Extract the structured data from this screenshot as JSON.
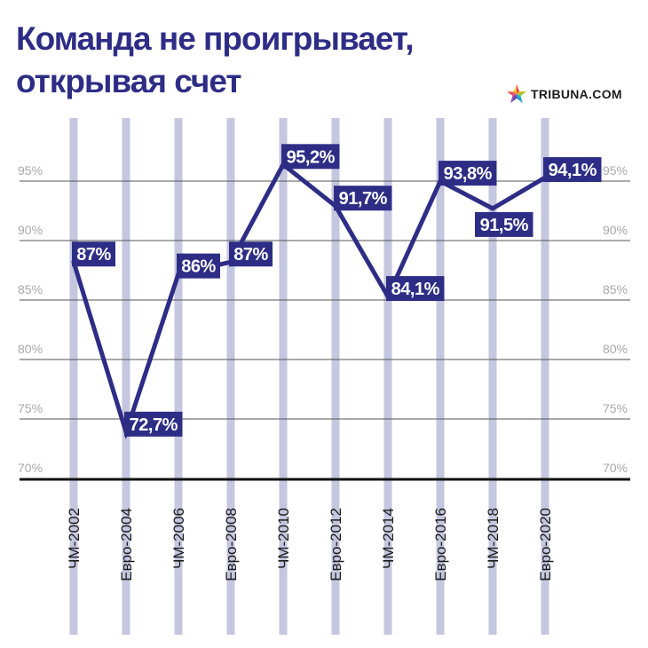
{
  "title_lines": [
    "Команда не проигрывает,",
    "открывая счет"
  ],
  "brand": {
    "name": "TRIBUNA.COM",
    "icon": "star-logo-icon"
  },
  "colors": {
    "line": "#2e2d86",
    "label_bg": "#2e2d86",
    "column_stripe": "#c5c6df",
    "grid": "#555555",
    "baseline": "#111111",
    "tick_text": "#a8a8a8"
  },
  "chart_data": {
    "type": "line",
    "title": "Команда не проигрывает, открывая счет",
    "categories": [
      "ЧМ-2002",
      "Евро-2004",
      "ЧМ-2006",
      "Евро-2008",
      "ЧМ-2010",
      "Евро-2012",
      "ЧМ-2014",
      "Евро-2016",
      "ЧМ-2018",
      "Евро-2020"
    ],
    "values": [
      87,
      72.7,
      86,
      87,
      95.2,
      91.7,
      84.1,
      93.8,
      91.5,
      94.1
    ],
    "data_labels": [
      "87%",
      "72,7%",
      "86%",
      "87%",
      "95,2%",
      "91,7%",
      "84,1%",
      "93,8%",
      "91,5%",
      "94,1%"
    ],
    "label_position": [
      "right",
      "right",
      "right",
      "right",
      "right",
      "right",
      "right",
      "right",
      "below",
      "right"
    ],
    "yticks": [
      70,
      75,
      80,
      85,
      90,
      95
    ],
    "ytick_labels": [
      "70%",
      "75%",
      "80%",
      "85%",
      "90%",
      "95%"
    ],
    "ylim": [
      70,
      97.5
    ],
    "xlabel": "",
    "ylabel": "",
    "grid": true,
    "y_axis_labels_both_sides": true,
    "x_labels_rotation": -90
  }
}
